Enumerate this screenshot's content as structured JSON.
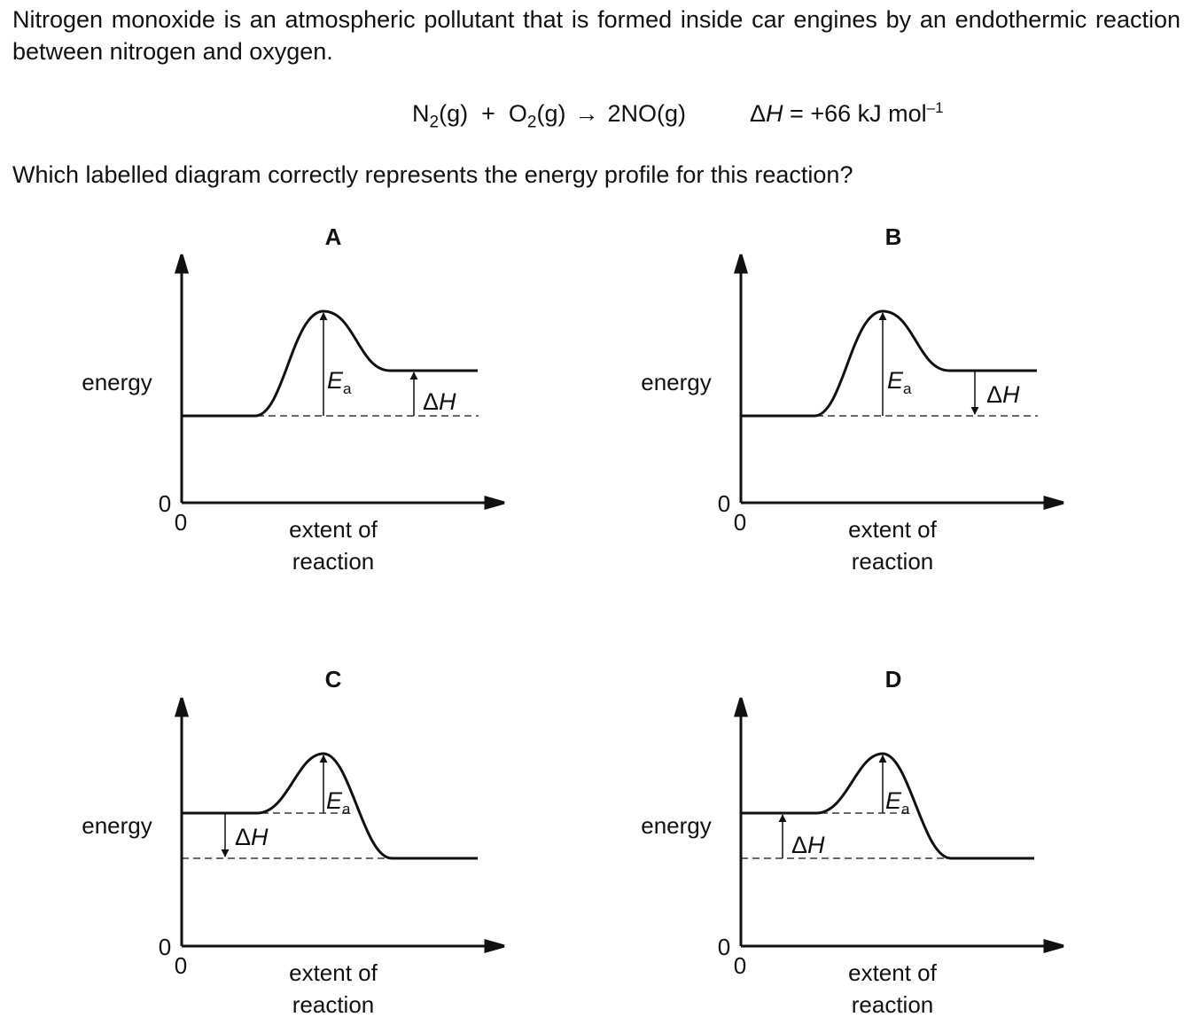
{
  "question": {
    "intro": "Nitrogen monoxide is an atmospheric pollutant that is formed inside car engines by an endothermic reaction between nitrogen and oxygen.",
    "equation": {
      "n2": "N",
      "n2_sub": "2",
      "n2_state": "(g)",
      "plus": "+",
      "o2": "O",
      "o2_sub": "2",
      "o2_state": "(g)",
      "arrow": "→",
      "product": "2NO(g)",
      "delta": "Δ",
      "h": "H",
      "value": " = +66 kJ mol",
      "exp": "–1"
    },
    "prompt": "Which labelled diagram correctly represents the energy profile for this reaction?"
  },
  "axis": {
    "ylabel": "energy",
    "xlabel_line1": "extent of",
    "xlabel_line2": "reaction",
    "origin_y": "0",
    "origin_x": "0"
  },
  "symbols": {
    "ea_main": "E",
    "ea_sub": "a",
    "dh_delta": "Δ",
    "dh_h": "H"
  },
  "diagrams": [
    {
      "label": "A",
      "profile": "endothermic",
      "dh_arrow": "up"
    },
    {
      "label": "B",
      "profile": "endothermic",
      "dh_arrow": "down"
    },
    {
      "label": "C",
      "profile": "exothermic",
      "dh_arrow": "down"
    },
    {
      "label": "D",
      "profile": "exothermic",
      "dh_arrow": "up"
    }
  ]
}
